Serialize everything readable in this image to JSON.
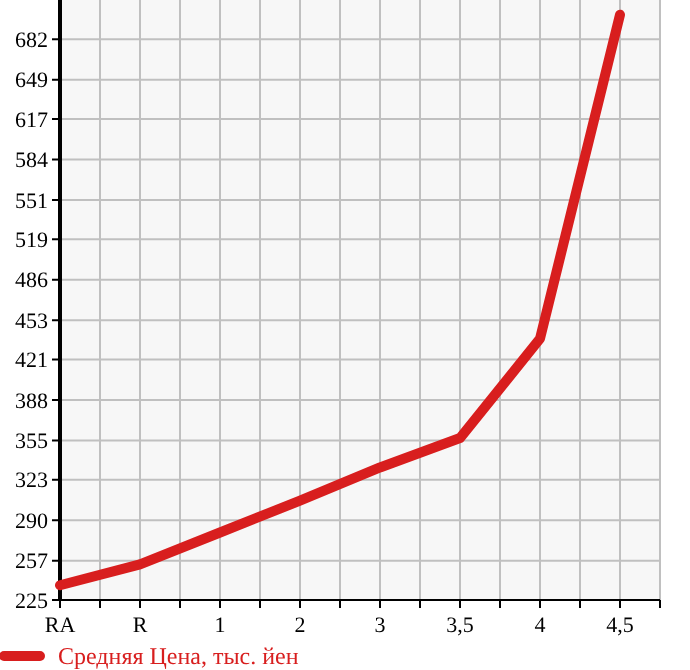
{
  "chart_data": {
    "type": "line",
    "categories": [
      "RA",
      "R",
      "1",
      "2",
      "3",
      "3,5",
      "4",
      "4,5"
    ],
    "series": [
      {
        "name": "Средняя Цена, тыс. йен",
        "color": "#d81e1e",
        "values": [
          237,
          254,
          280,
          306,
          333,
          357,
          438,
          702
        ]
      }
    ],
    "ylim": [
      225,
      714
    ],
    "yticks": [
      225,
      257,
      290,
      323,
      355,
      388,
      421,
      453,
      486,
      519,
      551,
      584,
      617,
      649,
      682
    ],
    "grid": true,
    "legend": "bottom",
    "marker": "none",
    "line_style": "solid"
  }
}
